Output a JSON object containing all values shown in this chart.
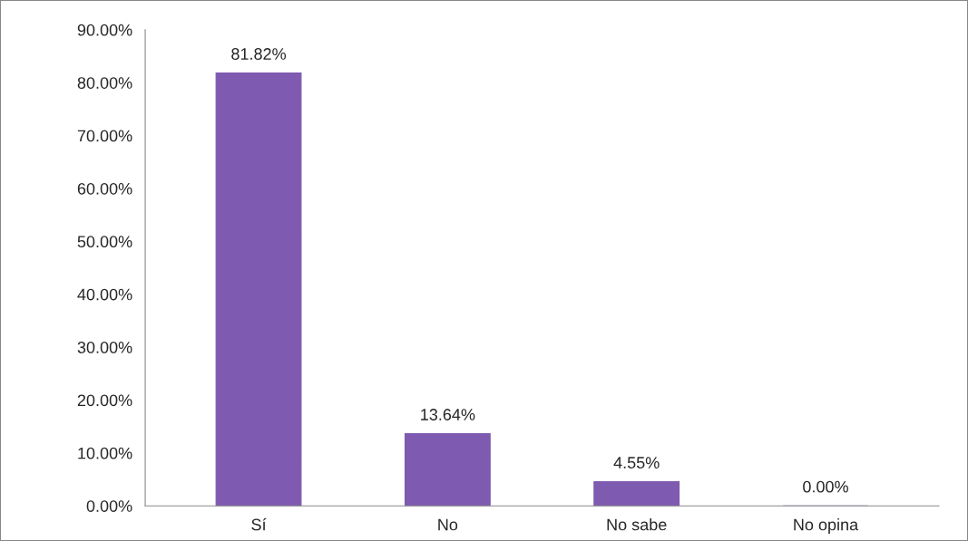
{
  "chart_data": {
    "type": "bar",
    "categories": [
      "Sí",
      "No",
      "No sabe",
      "No opina"
    ],
    "values": [
      81.82,
      13.64,
      4.55,
      0.0
    ],
    "value_labels": [
      "81.82%",
      "13.64%",
      "4.55%",
      "0.00%"
    ],
    "color": "#7e5ab0",
    "ylim": [
      0,
      90
    ],
    "yticks": [
      {
        "value": 0,
        "label": "0.00%"
      },
      {
        "value": 10,
        "label": "10.00%"
      },
      {
        "value": 20,
        "label": "20.00%"
      },
      {
        "value": 30,
        "label": "30.00%"
      },
      {
        "value": 40,
        "label": "40.00%"
      },
      {
        "value": 50,
        "label": "50.00%"
      },
      {
        "value": 60,
        "label": "60.00%"
      },
      {
        "value": 70,
        "label": "70.00%"
      },
      {
        "value": 80,
        "label": "80.00%"
      },
      {
        "value": 90,
        "label": "90.00%"
      }
    ],
    "grid": false
  }
}
